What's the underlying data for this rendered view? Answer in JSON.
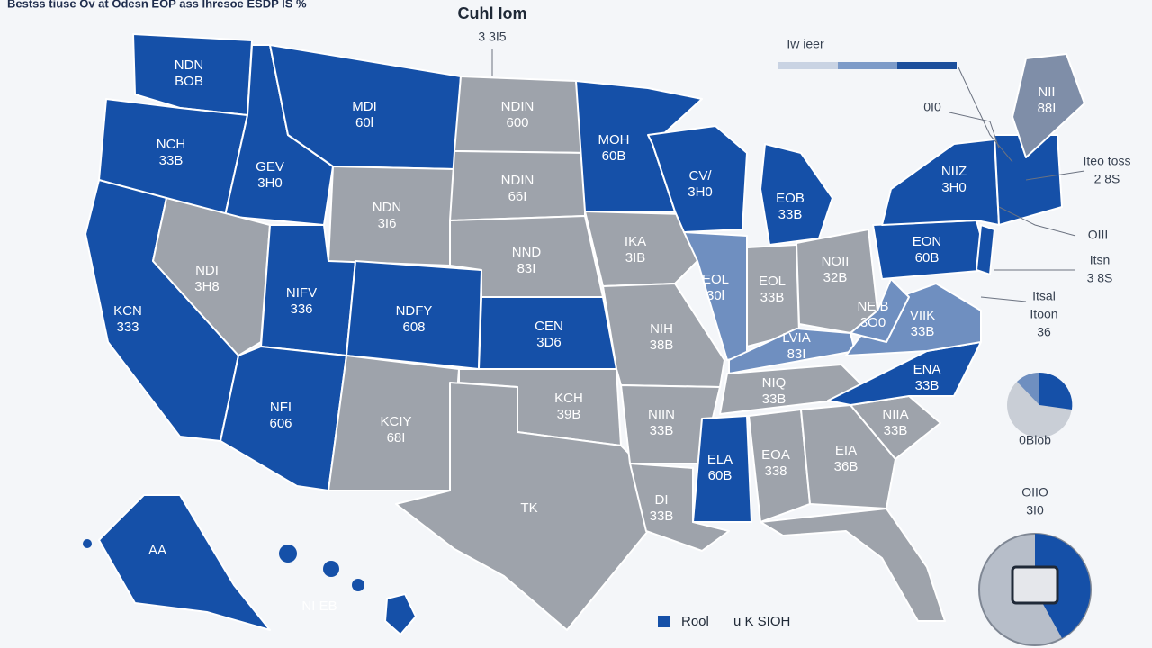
{
  "header": {
    "topline": "Bestss tiuse Ov at Odesn  EOP ass Ihresoe ESDP IS %",
    "title": "Cuhl Iom",
    "subtitle": "3 3I5"
  },
  "legend": {
    "title": "Iw ieer",
    "colors": [
      "#c9d3e3",
      "#7d9bc8",
      "#1c4f9c"
    ]
  },
  "regions": [
    {
      "lines": [
        "NDN",
        "BOB"
      ],
      "color": "#1550a8"
    },
    {
      "lines": [
        "NCH",
        "33B"
      ],
      "color": "#1550a8"
    },
    {
      "lines": [
        "GEV",
        "3H0"
      ],
      "color": "#1550a8"
    },
    {
      "lines": [
        "MDI",
        "60l"
      ],
      "color": "#1550a8"
    },
    {
      "lines": [
        "KCN",
        "333"
      ],
      "color": "#1550a8"
    },
    {
      "lines": [
        "NDI",
        "3H8"
      ],
      "color": "#9ea3ab"
    },
    {
      "lines": [
        "NIFV",
        "336"
      ],
      "color": "#1550a8"
    },
    {
      "lines": [
        "NDN",
        "3I6"
      ],
      "color": "#9ea3ab"
    },
    {
      "lines": [
        "NDFY",
        "608"
      ],
      "color": "#1550a8"
    },
    {
      "lines": [
        "NFI",
        "606"
      ],
      "color": "#1550a8"
    },
    {
      "lines": [
        "KCIY",
        "68I"
      ],
      "color": "#9ea3ab"
    },
    {
      "lines": [
        "NDIN",
        "600"
      ],
      "color": "#9ea3ab"
    },
    {
      "lines": [
        "NDIN",
        "66I"
      ],
      "color": "#9ea3ab"
    },
    {
      "lines": [
        "NND",
        "83I"
      ],
      "color": "#9ea3ab"
    },
    {
      "lines": [
        "CEN",
        "3D6"
      ],
      "color": "#1550a8"
    },
    {
      "lines": [
        "KCH",
        "39B"
      ],
      "color": "#9ea3ab"
    },
    {
      "lines": [
        "TK"
      ],
      "color": "#9ea3ab"
    },
    {
      "lines": [
        "MOH",
        "60B"
      ],
      "color": "#1550a8"
    },
    {
      "lines": [
        "IKA",
        "3IB"
      ],
      "color": "#9ea3ab"
    },
    {
      "lines": [
        "NIH",
        "38B"
      ],
      "color": "#9ea3ab"
    },
    {
      "lines": [
        "NIIN",
        "33B"
      ],
      "color": "#9ea3ab"
    },
    {
      "lines": [
        "DI",
        "33B"
      ],
      "color": "#9ea3ab"
    },
    {
      "lines": [
        "CV/",
        "3H0"
      ],
      "color": "#1550a8"
    },
    {
      "lines": [
        "EOL",
        "30l"
      ],
      "color": "#6f8fc0"
    },
    {
      "lines": [
        "EOB",
        "33B"
      ],
      "color": "#1550a8"
    },
    {
      "lines": [
        "EOL",
        "33B"
      ],
      "color": "#9ea3ab"
    },
    {
      "lines": [
        "NOII",
        "32B"
      ],
      "color": "#9ea3ab"
    },
    {
      "lines": [
        "LVIA",
        "83I"
      ],
      "color": "#6f8fc0"
    },
    {
      "lines": [
        "NIQ",
        "33B"
      ],
      "color": "#9ea3ab"
    },
    {
      "lines": [
        "ELA",
        "60B"
      ],
      "color": "#1550a8"
    },
    {
      "lines": [
        "EOA",
        "338"
      ],
      "color": "#9ea3ab"
    },
    {
      "lines": [
        "EIA",
        "36B"
      ],
      "color": "#9ea3ab"
    },
    {
      "lines": [],
      "color": "#9ea3ab"
    },
    {
      "lines": [
        "NIIA",
        "33B"
      ],
      "color": "#9ea3ab"
    },
    {
      "lines": [
        "ENA",
        "33B"
      ],
      "color": "#1550a8"
    },
    {
      "lines": [
        "VIIK",
        "33B"
      ],
      "color": "#6f8fc0"
    },
    {
      "lines": [
        "NEIB",
        "3O0"
      ],
      "color": "#6f8fc0"
    },
    {
      "lines": [
        "EON",
        "60B"
      ],
      "color": "#1550a8"
    },
    {
      "lines": [
        "NIIZ",
        "3H0"
      ],
      "color": "#1550a8"
    },
    {
      "lines": [],
      "color": "#1550a8"
    },
    {
      "lines": [],
      "color": "#1550a8"
    },
    {
      "lines": [
        "NII",
        "88I"
      ],
      "color": "#7f8ea8"
    },
    {
      "lines": [
        "AA"
      ],
      "color": "#1550a8"
    },
    {
      "lines": [
        "NI EB"
      ],
      "color": "#1550a8"
    }
  ],
  "annotations": [
    {
      "lines": [
        "0I0"
      ]
    },
    {
      "lines": [
        "Iteo toss",
        "2 8S"
      ]
    },
    {
      "lines": [
        "OIII"
      ]
    },
    {
      "lines": [
        "Itsn",
        "3 8S"
      ]
    },
    {
      "lines": [
        "Itsal",
        "Itoon",
        "36"
      ]
    },
    {
      "lines": [
        "0Blob"
      ]
    },
    {
      "lines": [
        "OIIO",
        "3I0"
      ]
    }
  ],
  "bottom_legend": {
    "items": [
      "Rool",
      "u K SIOH"
    ],
    "color": "#1550a8"
  }
}
